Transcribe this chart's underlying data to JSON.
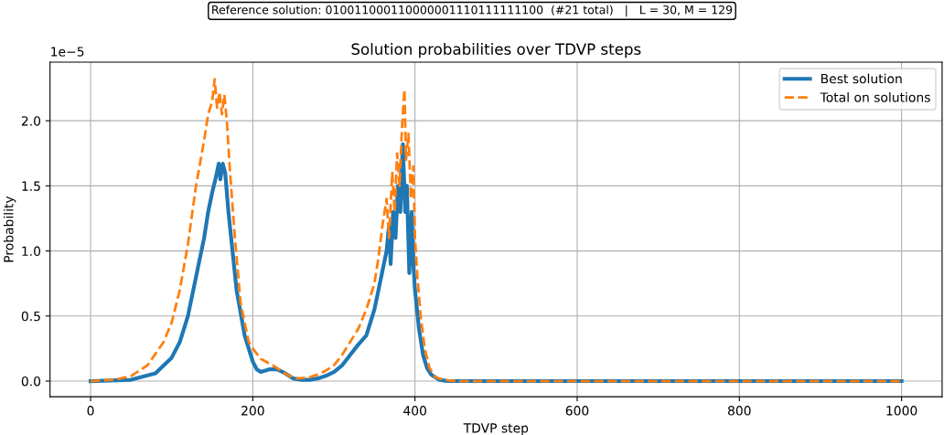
{
  "chart_data": {
    "type": "line",
    "title": "Solution probabilities over TDVP steps",
    "subtitle": "Reference solution: 010011000110000001110111111100  (#21 total)   |   L = 30, M = 129",
    "xlabel": "TDVP step",
    "ylabel": "Probability",
    "annotations": [
      "1e−5"
    ],
    "xlim": [
      -50,
      1050
    ],
    "xticks": [
      0,
      200,
      400,
      600,
      800,
      1000
    ],
    "ylim": [
      -0.12,
      2.45
    ],
    "yticks": [
      {
        "value": 0,
        "label": "0.0"
      },
      {
        "value": 0.5,
        "label": "0.5"
      },
      {
        "value": 1,
        "label": "1.0"
      },
      {
        "value": 1.5,
        "label": "1.5"
      },
      {
        "value": 2,
        "label": "2.0"
      }
    ],
    "grid": true,
    "legend": "top right",
    "marker": "none",
    "series": [
      {
        "name": "Best solution",
        "color": "#1f77b4",
        "line_style": "solid",
        "x": [
          0,
          50,
          80,
          100,
          110,
          120,
          130,
          140,
          145,
          150,
          155,
          158,
          160,
          163,
          166,
          170,
          175,
          180,
          190,
          200,
          205,
          210,
          220,
          230,
          240,
          250,
          260,
          270,
          280,
          290,
          300,
          310,
          320,
          330,
          340,
          345,
          350,
          355,
          360,
          365,
          368,
          370,
          373,
          376,
          379,
          382,
          385,
          388,
          390,
          393,
          396,
          398,
          400,
          405,
          410,
          415,
          420,
          430,
          440,
          500,
          600,
          700,
          800,
          900,
          1000
        ],
        "values": [
          0,
          0.01,
          0.06,
          0.18,
          0.3,
          0.5,
          0.8,
          1.1,
          1.3,
          1.45,
          1.58,
          1.67,
          1.55,
          1.67,
          1.6,
          1.3,
          1.0,
          0.7,
          0.35,
          0.15,
          0.09,
          0.07,
          0.09,
          0.09,
          0.06,
          0.02,
          0.01,
          0.01,
          0.02,
          0.04,
          0.07,
          0.12,
          0.2,
          0.28,
          0.35,
          0.45,
          0.55,
          0.7,
          0.85,
          1.0,
          1.2,
          0.9,
          1.3,
          1.1,
          1.5,
          1.3,
          1.82,
          1.3,
          1.5,
          0.83,
          1.3,
          0.9,
          0.7,
          0.4,
          0.2,
          0.1,
          0.05,
          0.01,
          0,
          0,
          0,
          0,
          0,
          0,
          0
        ]
      },
      {
        "name": "Total on solutions",
        "color": "#ff7f0e",
        "line_style": "dashed",
        "x": [
          0,
          30,
          50,
          70,
          90,
          100,
          110,
          120,
          130,
          140,
          145,
          150,
          153,
          156,
          159,
          162,
          165,
          168,
          172,
          178,
          185,
          195,
          200,
          210,
          225,
          235,
          245,
          255,
          270,
          280,
          290,
          300,
          310,
          320,
          330,
          340,
          350,
          355,
          360,
          365,
          368,
          372,
          375,
          378,
          381,
          384,
          387,
          389,
          392,
          395,
          398,
          400,
          403,
          407,
          412,
          418,
          425,
          435,
          450,
          600,
          800,
          1000
        ],
        "values": [
          0,
          0.01,
          0.04,
          0.12,
          0.3,
          0.45,
          0.7,
          1.05,
          1.5,
          1.85,
          2.05,
          2.15,
          2.32,
          2.1,
          2.22,
          2.05,
          2.2,
          2.0,
          1.6,
          1.1,
          0.6,
          0.3,
          0.25,
          0.17,
          0.12,
          0.08,
          0.04,
          0.02,
          0.03,
          0.05,
          0.08,
          0.12,
          0.2,
          0.3,
          0.4,
          0.55,
          0.75,
          0.95,
          1.2,
          1.4,
          1.1,
          1.6,
          1.3,
          1.75,
          1.5,
          1.95,
          2.24,
          1.7,
          1.9,
          1.4,
          1.65,
          1.1,
          0.8,
          0.5,
          0.25,
          0.1,
          0.03,
          0.01,
          0,
          0,
          0,
          0
        ]
      }
    ]
  }
}
